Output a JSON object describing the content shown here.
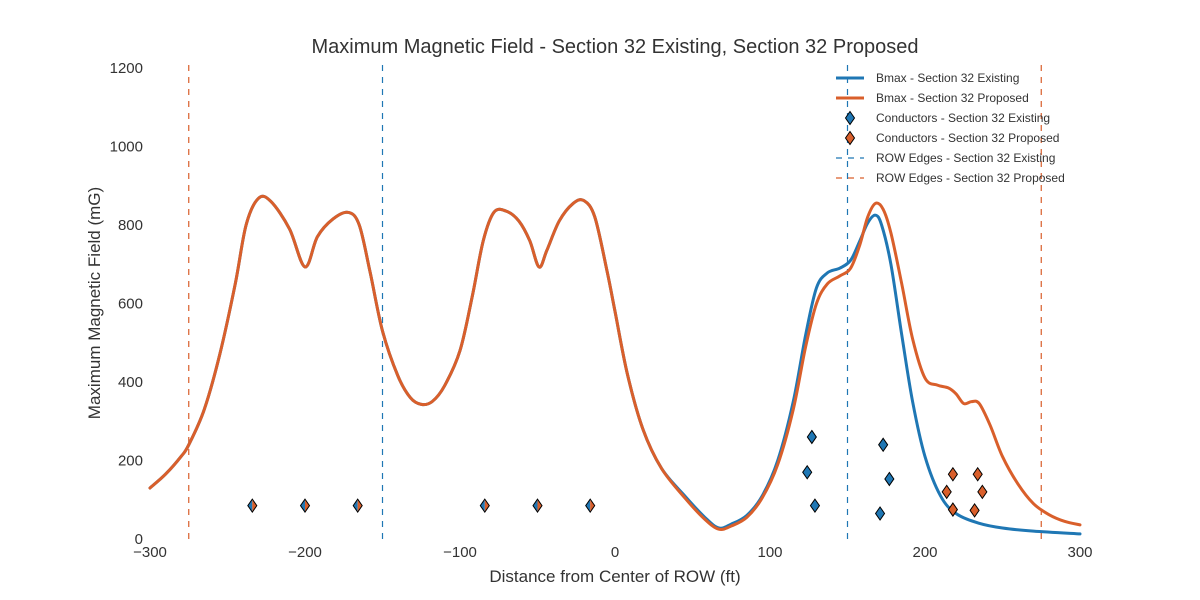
{
  "chart_data": {
    "type": "line",
    "title": "Maximum Magnetic Field - Section 32 Existing, Section 32 Proposed",
    "xlabel": "Distance from Center of ROW (ft)",
    "ylabel": "Maximum Magnetic Field (mG)",
    "xlim": [
      -300,
      300
    ],
    "ylim": [
      0,
      1200
    ],
    "xticks": [
      -300,
      -200,
      -100,
      0,
      100,
      200,
      300
    ],
    "xtick_labels": [
      "−300",
      "−200",
      "−100",
      "0",
      "100",
      "200",
      "300"
    ],
    "yticks": [
      0,
      200,
      400,
      600,
      800,
      1000,
      1200
    ],
    "ytick_labels": [
      "0",
      "200",
      "400",
      "600",
      "800",
      "1000",
      "1200"
    ],
    "grid": false,
    "legend_position": "top-right",
    "colors": {
      "existing": "#1f77b4",
      "proposed": "#d95f2b",
      "text": "#333333"
    },
    "series": [
      {
        "name": "Bmax - Section 32 Existing",
        "style": "line",
        "color": "#1f77b4",
        "points": [
          [
            -300,
            130
          ],
          [
            -290,
            165
          ],
          [
            -280,
            210
          ],
          [
            -275,
            240
          ],
          [
            -265,
            330
          ],
          [
            -255,
            470
          ],
          [
            -245,
            650
          ],
          [
            -238,
            800
          ],
          [
            -230,
            868
          ],
          [
            -222,
            860
          ],
          [
            -210,
            790
          ],
          [
            -200,
            693
          ],
          [
            -192,
            770
          ],
          [
            -182,
            815
          ],
          [
            -172,
            832
          ],
          [
            -165,
            800
          ],
          [
            -158,
            680
          ],
          [
            -150,
            530
          ],
          [
            -140,
            415
          ],
          [
            -132,
            360
          ],
          [
            -125,
            343
          ],
          [
            -118,
            350
          ],
          [
            -110,
            390
          ],
          [
            -100,
            480
          ],
          [
            -92,
            620
          ],
          [
            -85,
            760
          ],
          [
            -78,
            833
          ],
          [
            -70,
            835
          ],
          [
            -62,
            810
          ],
          [
            -55,
            760
          ],
          [
            -49,
            693
          ],
          [
            -44,
            735
          ],
          [
            -36,
            810
          ],
          [
            -27,
            855
          ],
          [
            -20,
            862
          ],
          [
            -13,
            820
          ],
          [
            -5,
            680
          ],
          [
            0,
            580
          ],
          [
            8,
            420
          ],
          [
            18,
            280
          ],
          [
            30,
            180
          ],
          [
            45,
            110
          ],
          [
            58,
            55
          ],
          [
            67,
            28
          ],
          [
            75,
            38
          ],
          [
            85,
            60
          ],
          [
            95,
            110
          ],
          [
            105,
            200
          ],
          [
            115,
            350
          ],
          [
            123,
            520
          ],
          [
            130,
            640
          ],
          [
            137,
            678
          ],
          [
            145,
            690
          ],
          [
            152,
            710
          ],
          [
            158,
            760
          ],
          [
            163,
            805
          ],
          [
            168,
            825
          ],
          [
            172,
            800
          ],
          [
            178,
            700
          ],
          [
            185,
            520
          ],
          [
            192,
            350
          ],
          [
            200,
            210
          ],
          [
            210,
            110
          ],
          [
            220,
            65
          ],
          [
            235,
            40
          ],
          [
            250,
            28
          ],
          [
            270,
            20
          ],
          [
            300,
            13
          ]
        ]
      },
      {
        "name": "Bmax - Section 32 Proposed",
        "style": "line",
        "color": "#d95f2b",
        "points": [
          [
            -300,
            130
          ],
          [
            -290,
            165
          ],
          [
            -280,
            210
          ],
          [
            -275,
            240
          ],
          [
            -265,
            330
          ],
          [
            -255,
            470
          ],
          [
            -245,
            650
          ],
          [
            -238,
            800
          ],
          [
            -230,
            868
          ],
          [
            -222,
            860
          ],
          [
            -210,
            790
          ],
          [
            -200,
            693
          ],
          [
            -192,
            770
          ],
          [
            -182,
            815
          ],
          [
            -172,
            832
          ],
          [
            -165,
            800
          ],
          [
            -158,
            680
          ],
          [
            -150,
            530
          ],
          [
            -140,
            415
          ],
          [
            -132,
            360
          ],
          [
            -125,
            343
          ],
          [
            -118,
            350
          ],
          [
            -110,
            390
          ],
          [
            -100,
            480
          ],
          [
            -92,
            620
          ],
          [
            -85,
            760
          ],
          [
            -78,
            833
          ],
          [
            -70,
            835
          ],
          [
            -62,
            810
          ],
          [
            -55,
            760
          ],
          [
            -49,
            693
          ],
          [
            -44,
            735
          ],
          [
            -36,
            810
          ],
          [
            -27,
            855
          ],
          [
            -20,
            862
          ],
          [
            -13,
            820
          ],
          [
            -5,
            680
          ],
          [
            0,
            580
          ],
          [
            8,
            420
          ],
          [
            18,
            280
          ],
          [
            30,
            180
          ],
          [
            45,
            105
          ],
          [
            58,
            50
          ],
          [
            67,
            25
          ],
          [
            75,
            33
          ],
          [
            85,
            55
          ],
          [
            95,
            105
          ],
          [
            105,
            190
          ],
          [
            115,
            330
          ],
          [
            123,
            490
          ],
          [
            130,
            600
          ],
          [
            137,
            650
          ],
          [
            145,
            670
          ],
          [
            152,
            690
          ],
          [
            158,
            750
          ],
          [
            163,
            820
          ],
          [
            168,
            855
          ],
          [
            173,
            840
          ],
          [
            178,
            780
          ],
          [
            185,
            650
          ],
          [
            192,
            510
          ],
          [
            200,
            410
          ],
          [
            208,
            392
          ],
          [
            215,
            385
          ],
          [
            220,
            370
          ],
          [
            225,
            345
          ],
          [
            230,
            350
          ],
          [
            235,
            345
          ],
          [
            242,
            290
          ],
          [
            250,
            210
          ],
          [
            260,
            140
          ],
          [
            270,
            90
          ],
          [
            280,
            62
          ],
          [
            290,
            45
          ],
          [
            300,
            36
          ]
        ]
      },
      {
        "name": "Conductors - Section 32 Existing",
        "style": "markers",
        "marker": "diamond",
        "color": "#1f77b4",
        "points": [
          [
            -234,
            85
          ],
          [
            -200,
            85
          ],
          [
            -166,
            85
          ],
          [
            -84,
            85
          ],
          [
            -50,
            85
          ],
          [
            -16,
            85
          ],
          [
            127,
            260
          ],
          [
            124,
            170
          ],
          [
            129,
            85
          ],
          [
            173,
            240
          ],
          [
            177,
            153
          ],
          [
            171,
            65
          ]
        ]
      },
      {
        "name": "Conductors - Section 32 Proposed",
        "style": "markers",
        "marker": "diamond",
        "color": "#d95f2b",
        "points": [
          [
            -234,
            85
          ],
          [
            -200,
            85
          ],
          [
            -166,
            85
          ],
          [
            -84,
            85
          ],
          [
            -50,
            85
          ],
          [
            -16,
            85
          ],
          [
            218,
            165
          ],
          [
            214,
            120
          ],
          [
            218,
            75
          ],
          [
            234,
            165
          ],
          [
            237,
            120
          ],
          [
            232,
            73
          ]
        ]
      },
      {
        "name": "ROW Edges - Section 32 Existing",
        "style": "vline-dashed",
        "color": "#1f77b4",
        "x": [
          -150,
          150
        ]
      },
      {
        "name": "ROW Edges - Section 32 Proposed",
        "style": "vline-dashed",
        "color": "#d95f2b",
        "x": [
          -275,
          275
        ]
      }
    ]
  }
}
